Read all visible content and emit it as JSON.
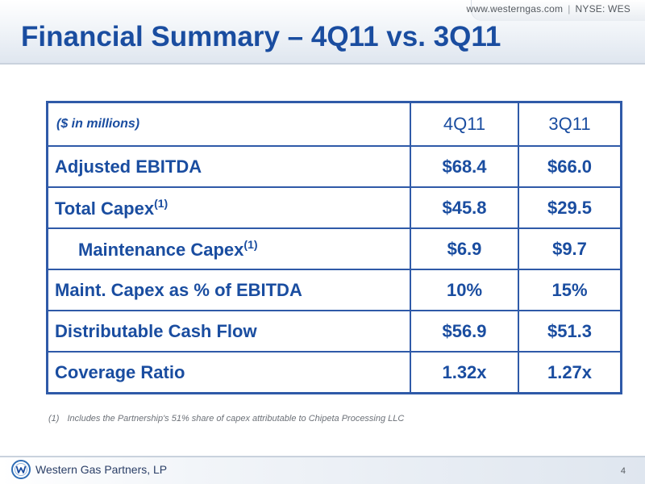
{
  "header": {
    "website": "www.westerngas.com",
    "ticker": "NYSE: WES",
    "title": "Financial Summary – 4Q11 vs. 3Q11"
  },
  "table": {
    "units_label": "($ in millions)",
    "columns": [
      "4Q11",
      "3Q11"
    ],
    "rows": [
      {
        "label": "Adjusted EBITDA",
        "note": "",
        "values": [
          "$68.4",
          "$66.0"
        ]
      },
      {
        "label": "Total Capex",
        "note": "(1)",
        "values": [
          "$45.8",
          "$29.5"
        ]
      },
      {
        "label": "Maintenance Capex",
        "note": "(1)",
        "values": [
          "$6.9",
          "$9.7"
        ]
      },
      {
        "label": "Maint. Capex as % of EBITDA",
        "note": "",
        "values": [
          "10%",
          "15%"
        ]
      },
      {
        "label": "Distributable Cash Flow",
        "note": "",
        "values": [
          "$56.9",
          "$51.3"
        ]
      },
      {
        "label": "Coverage Ratio",
        "note": "",
        "values": [
          "1.32x",
          "1.27x"
        ]
      }
    ]
  },
  "footnote": {
    "mark": "(1)",
    "text": "Includes the Partnership's 51% share of capex attributable to Chipeta Processing LLC"
  },
  "footer": {
    "logo_icon": "western-gas-logo-icon",
    "company": "Western Gas Partners, LP",
    "page_number": "4"
  },
  "colors": {
    "title_blue": "#1a4da0",
    "table_border": "#2f5aa8"
  }
}
